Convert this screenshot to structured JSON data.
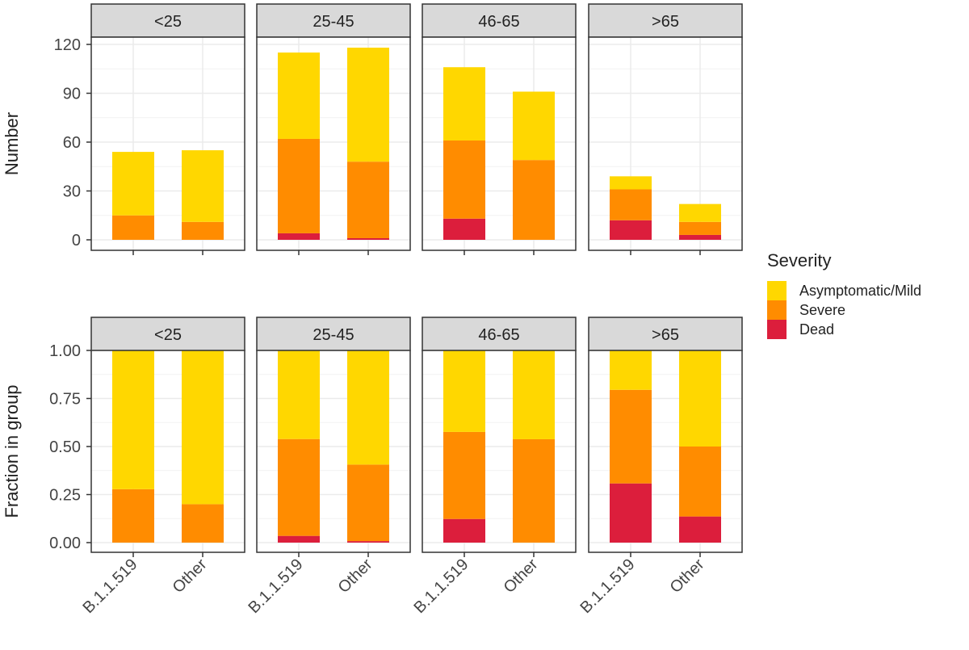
{
  "chart_data": [
    {
      "type": "bar",
      "stacked": true,
      "ylabel": "Number",
      "ylim": [
        0,
        120
      ],
      "yticks": [
        "0",
        "30",
        "60",
        "90",
        "120"
      ],
      "grid": true,
      "facets": [
        "<25",
        "25-45",
        "46-65",
        ">65"
      ],
      "categories": [
        "B.1.1.519",
        "Other"
      ],
      "series": [
        {
          "name": "Dead",
          "values": {
            "<25": [
              0,
              0
            ],
            "25-45": [
              4,
              1
            ],
            "46-65": [
              13,
              0
            ],
            ">65": [
              12,
              3
            ]
          }
        },
        {
          "name": "Severe",
          "values": {
            "<25": [
              15,
              11
            ],
            "25-45": [
              58,
              47
            ],
            "46-65": [
              48,
              49
            ],
            ">65": [
              19,
              8
            ]
          }
        },
        {
          "name": "Asymptomatic/Mild",
          "values": {
            "<25": [
              39,
              44
            ],
            "25-45": [
              53,
              70
            ],
            "46-65": [
              45,
              42
            ],
            ">65": [
              8,
              11
            ]
          }
        }
      ]
    },
    {
      "type": "bar",
      "stacked": true,
      "ylabel": "Fraction in group",
      "ylim": [
        0,
        1
      ],
      "yticks": [
        "0.00",
        "0.25",
        "0.50",
        "0.75",
        "1.00"
      ],
      "grid": true,
      "facets": [
        "<25",
        "25-45",
        "46-65",
        ">65"
      ],
      "categories": [
        "B.1.1.519",
        "Other"
      ],
      "series": [
        {
          "name": "Dead",
          "values": {
            "<25": [
              0,
              0
            ],
            "25-45": [
              0.035,
              0.008
            ],
            "46-65": [
              0.123,
              0
            ],
            ">65": [
              0.308,
              0.136
            ]
          }
        },
        {
          "name": "Severe",
          "values": {
            "<25": [
              0.278,
              0.2
            ],
            "25-45": [
              0.504,
              0.398
            ],
            "46-65": [
              0.453,
              0.538
            ],
            ">65": [
              0.487,
              0.364
            ]
          }
        },
        {
          "name": "Asymptomatic/Mild",
          "values": {
            "<25": [
              0.722,
              0.8
            ],
            "25-45": [
              0.461,
              0.593
            ],
            "46-65": [
              0.425,
              0.462
            ],
            ">65": [
              0.205,
              0.5
            ]
          }
        }
      ]
    }
  ],
  "legend": {
    "title": "Severity",
    "position": "right",
    "items": [
      {
        "label": "Asymptomatic/Mild",
        "color": "#FFD700"
      },
      {
        "label": "Severe",
        "color": "#FF8C00"
      },
      {
        "label": "Dead",
        "color": "#DC1E3C"
      }
    ]
  },
  "colors": {
    "Asymptomatic/Mild": "#FFD700",
    "Severe": "#FF8C00",
    "Dead": "#DC1E3C",
    "strip": "#D9D9D9"
  }
}
